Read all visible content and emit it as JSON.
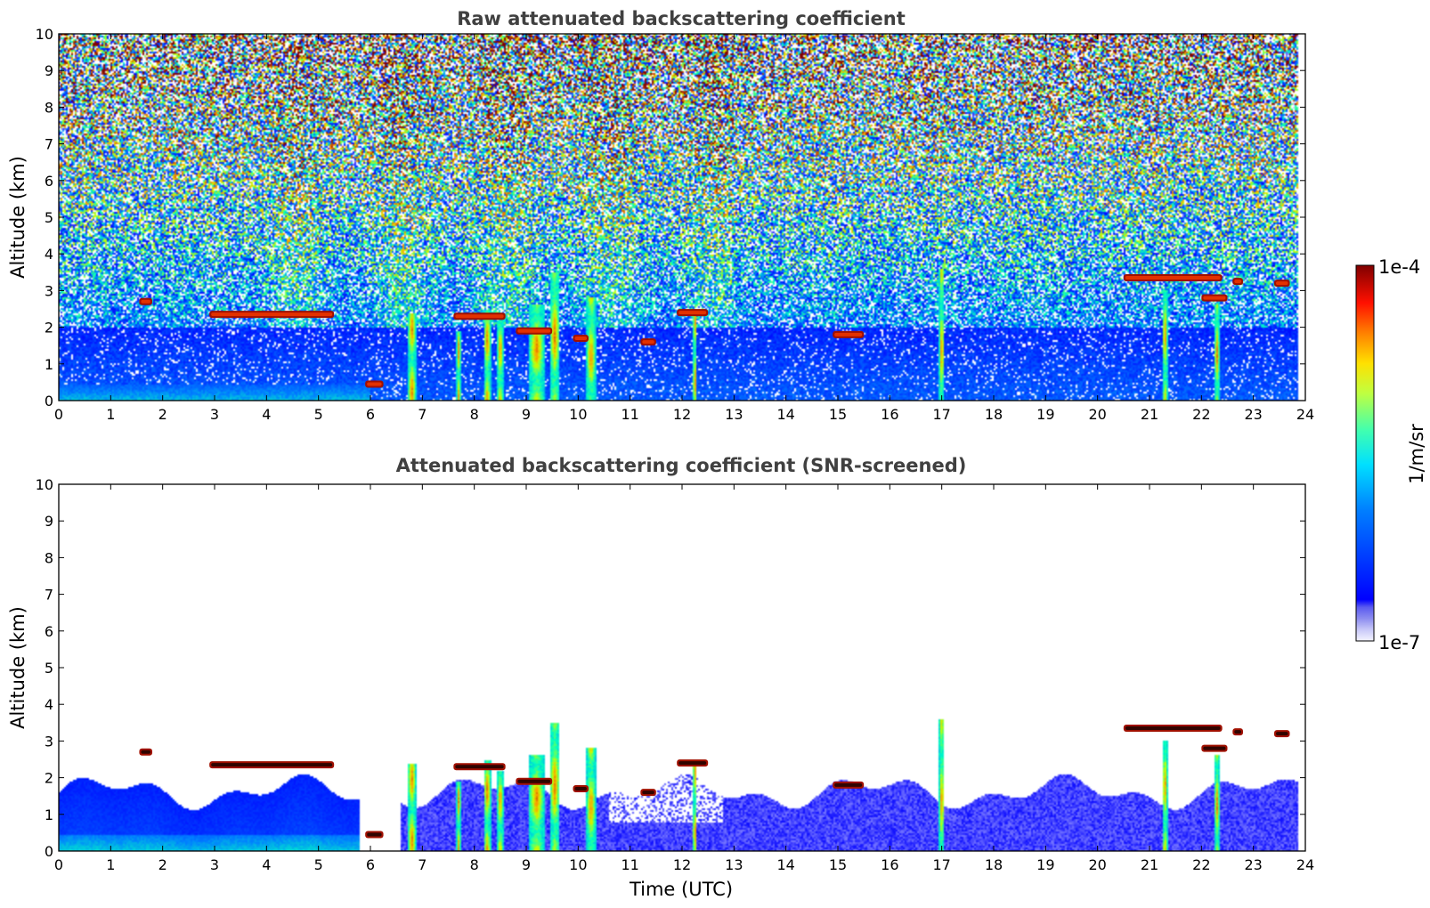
{
  "chart_data": [
    {
      "type": "heatmap",
      "title": "Raw attenuated backscattering coefficient",
      "xlabel": "",
      "ylabel": "Altitude (km)",
      "xlim": [
        0,
        24
      ],
      "ylim": [
        0,
        10
      ],
      "xticks": [
        "0",
        "1",
        "2",
        "3",
        "4",
        "5",
        "6",
        "7",
        "8",
        "9",
        "10",
        "11",
        "12",
        "13",
        "14",
        "15",
        "16",
        "17",
        "18",
        "19",
        "20",
        "21",
        "22",
        "23",
        "24"
      ],
      "yticks": [
        "0",
        "1",
        "2",
        "3",
        "4",
        "5",
        "6",
        "7",
        "8",
        "9",
        "10"
      ],
      "background": "noise",
      "features": {
        "layers": [
          {
            "x0": 1.55,
            "x1": 1.8,
            "y": 2.7
          },
          {
            "x0": 2.9,
            "x1": 5.3,
            "y": 2.35
          },
          {
            "x0": 5.9,
            "x1": 6.25,
            "y": 0.45
          },
          {
            "x0": 7.6,
            "x1": 8.6,
            "y": 2.3
          },
          {
            "x0": 8.8,
            "x1": 9.5,
            "y": 1.9
          },
          {
            "x0": 9.9,
            "x1": 10.2,
            "y": 1.7
          },
          {
            "x0": 11.2,
            "x1": 11.5,
            "y": 1.6
          },
          {
            "x0": 11.9,
            "x1": 12.5,
            "y": 2.4
          },
          {
            "x0": 14.9,
            "x1": 15.5,
            "y": 1.8
          },
          {
            "x0": 20.5,
            "x1": 22.4,
            "y": 3.35
          },
          {
            "x0": 22.0,
            "x1": 22.5,
            "y": 2.8
          },
          {
            "x0": 22.6,
            "x1": 22.8,
            "y": 3.25
          },
          {
            "x0": 23.4,
            "x1": 23.7,
            "y": 3.2
          }
        ],
        "columns": [
          {
            "x": 6.8,
            "w": 0.16,
            "top": 2.4
          },
          {
            "x": 7.7,
            "w": 0.08,
            "top": 1.9
          },
          {
            "x": 8.25,
            "w": 0.14,
            "top": 2.5
          },
          {
            "x": 8.5,
            "w": 0.12,
            "top": 2.2
          },
          {
            "x": 9.2,
            "w": 0.3,
            "top": 2.6
          },
          {
            "x": 9.55,
            "w": 0.2,
            "top": 3.5
          },
          {
            "x": 10.25,
            "w": 0.18,
            "top": 2.8
          },
          {
            "x": 12.25,
            "w": 0.08,
            "top": 2.4
          },
          {
            "x": 17.0,
            "w": 0.1,
            "top": 3.6
          },
          {
            "x": 21.3,
            "w": 0.1,
            "top": 3.0
          },
          {
            "x": 22.3,
            "w": 0.1,
            "top": 2.6
          }
        ]
      }
    },
    {
      "type": "heatmap",
      "title": "Attenuated backscattering coefficient (SNR-screened)",
      "xlabel": "Time (UTC)",
      "ylabel": "Altitude (km)",
      "xlim": [
        0,
        24
      ],
      "ylim": [
        0,
        10
      ],
      "xticks": [
        "0",
        "1",
        "2",
        "3",
        "4",
        "5",
        "6",
        "7",
        "8",
        "9",
        "10",
        "11",
        "12",
        "13",
        "14",
        "15",
        "16",
        "17",
        "18",
        "19",
        "20",
        "21",
        "22",
        "23",
        "24"
      ],
      "yticks": [
        "0",
        "1",
        "2",
        "3",
        "4",
        "5",
        "6",
        "7",
        "8",
        "9",
        "10"
      ],
      "background": "screened",
      "features": {
        "layers": [
          {
            "x0": 1.55,
            "x1": 1.8,
            "y": 2.7
          },
          {
            "x0": 2.9,
            "x1": 5.3,
            "y": 2.35
          },
          {
            "x0": 5.9,
            "x1": 6.25,
            "y": 0.45
          },
          {
            "x0": 7.6,
            "x1": 8.6,
            "y": 2.3
          },
          {
            "x0": 8.8,
            "x1": 9.5,
            "y": 1.9
          },
          {
            "x0": 9.9,
            "x1": 10.2,
            "y": 1.7
          },
          {
            "x0": 11.2,
            "x1": 11.5,
            "y": 1.6
          },
          {
            "x0": 11.9,
            "x1": 12.5,
            "y": 2.4
          },
          {
            "x0": 14.9,
            "x1": 15.5,
            "y": 1.8
          },
          {
            "x0": 20.5,
            "x1": 22.4,
            "y": 3.35
          },
          {
            "x0": 22.0,
            "x1": 22.5,
            "y": 2.8
          },
          {
            "x0": 22.6,
            "x1": 22.8,
            "y": 3.25
          },
          {
            "x0": 23.4,
            "x1": 23.7,
            "y": 3.2
          }
        ],
        "columns": [
          {
            "x": 6.8,
            "w": 0.16,
            "top": 2.4
          },
          {
            "x": 7.7,
            "w": 0.08,
            "top": 1.9
          },
          {
            "x": 8.25,
            "w": 0.14,
            "top": 2.5
          },
          {
            "x": 8.5,
            "w": 0.12,
            "top": 2.2
          },
          {
            "x": 9.2,
            "w": 0.3,
            "top": 2.6
          },
          {
            "x": 9.55,
            "w": 0.2,
            "top": 3.5
          },
          {
            "x": 10.25,
            "w": 0.18,
            "top": 2.8
          },
          {
            "x": 12.25,
            "w": 0.08,
            "top": 2.4
          },
          {
            "x": 17.0,
            "w": 0.1,
            "top": 3.6
          },
          {
            "x": 21.3,
            "w": 0.1,
            "top": 3.0
          },
          {
            "x": 22.3,
            "w": 0.1,
            "top": 2.6
          }
        ]
      }
    }
  ],
  "colorbar": {
    "label": "1/m/sr",
    "max_label": "1e-4",
    "min_label": "1e-7",
    "range": [
      1e-07,
      0.0001
    ],
    "scale": "log",
    "colormap": "jet"
  }
}
